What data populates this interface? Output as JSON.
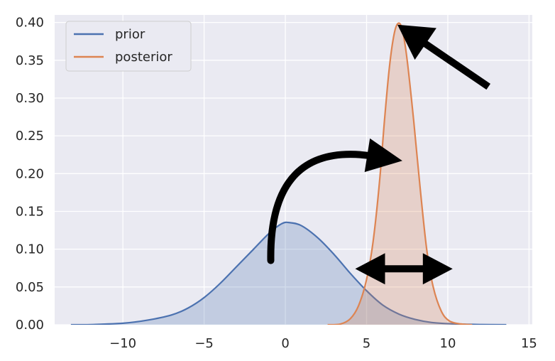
{
  "chart_data": {
    "type": "area",
    "title": "",
    "xlabel": "",
    "ylabel": "",
    "xlim": [
      -14.2,
      15.2
    ],
    "ylim": [
      0,
      0.4
    ],
    "grid": true,
    "legend_position": "top-left",
    "x_ticks": [
      -10,
      -5,
      0,
      5,
      10,
      15
    ],
    "x_tick_labels": [
      "−10",
      "−5",
      "0",
      "5",
      "10",
      "15"
    ],
    "y_ticks": [
      0.0,
      0.05,
      0.1,
      0.15,
      0.2,
      0.25,
      0.3,
      0.35,
      0.4
    ],
    "y_tick_labels": [
      "0.00",
      "0.05",
      "0.10",
      "0.15",
      "0.20",
      "0.25",
      "0.30",
      "0.35",
      "0.40"
    ],
    "series": [
      {
        "name": "prior",
        "color": "#4c72b0",
        "points": [
          [
            -13.2,
            0.0
          ],
          [
            -12,
            0.0002
          ],
          [
            -10,
            0.002
          ],
          [
            -8.5,
            0.006
          ],
          [
            -7,
            0.013
          ],
          [
            -6,
            0.022
          ],
          [
            -5,
            0.036
          ],
          [
            -4,
            0.055
          ],
          [
            -3,
            0.077
          ],
          [
            -2,
            0.099
          ],
          [
            -1,
            0.121
          ],
          [
            -0.2,
            0.134
          ],
          [
            0.3,
            0.135
          ],
          [
            1,
            0.131
          ],
          [
            2,
            0.115
          ],
          [
            3,
            0.093
          ],
          [
            4,
            0.068
          ],
          [
            5,
            0.045
          ],
          [
            6,
            0.026
          ],
          [
            7,
            0.014
          ],
          [
            8,
            0.007
          ],
          [
            9,
            0.003
          ],
          [
            10.5,
            0.001
          ],
          [
            12,
            0.0003
          ],
          [
            13.6,
            0.0
          ]
        ]
      },
      {
        "name": "posterior",
        "color": "#dd8452",
        "points": [
          [
            2.6,
            0.0
          ],
          [
            3.4,
            0.001
          ],
          [
            4,
            0.008
          ],
          [
            4.5,
            0.025
          ],
          [
            5,
            0.06
          ],
          [
            5.4,
            0.11
          ],
          [
            5.8,
            0.19
          ],
          [
            6.1,
            0.27
          ],
          [
            6.4,
            0.34
          ],
          [
            6.7,
            0.385
          ],
          [
            6.95,
            0.399
          ],
          [
            7.2,
            0.39
          ],
          [
            7.5,
            0.35
          ],
          [
            7.9,
            0.27
          ],
          [
            8.3,
            0.18
          ],
          [
            8.7,
            0.1
          ],
          [
            9.1,
            0.05
          ],
          [
            9.6,
            0.018
          ],
          [
            10.1,
            0.005
          ],
          [
            10.8,
            0.001
          ],
          [
            11.5,
            0.0
          ]
        ]
      }
    ],
    "annotations": [
      {
        "type": "arrow",
        "shape": "straight",
        "description": "arrow pointing to posterior peak",
        "from": [
          12.5,
          0.315
        ],
        "to": [
          6.9,
          0.397
        ]
      },
      {
        "type": "arrow",
        "shape": "curved",
        "description": "curved arrow from prior toward posterior",
        "from": [
          -0.9,
          0.085
        ],
        "via": [
          -1.0,
          0.245
        ],
        "to": [
          7.2,
          0.217
        ]
      },
      {
        "type": "arrow",
        "shape": "double-headed",
        "description": "horizontal double arrow indicating spread",
        "from": [
          4.3,
          0.074
        ],
        "to": [
          10.3,
          0.074
        ]
      }
    ]
  }
}
